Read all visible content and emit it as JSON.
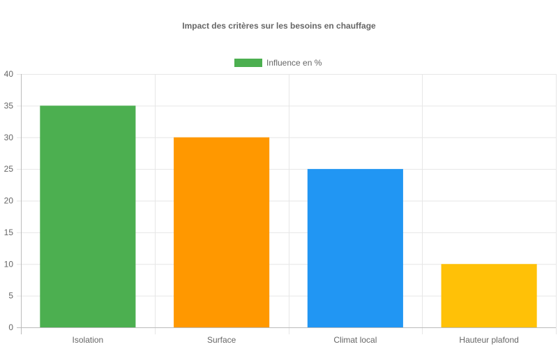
{
  "chart_data": {
    "type": "bar",
    "title": "Impact des critères sur les besoins en chauffage",
    "categories": [
      "Isolation",
      "Surface",
      "Climat local",
      "Hauteur plafond"
    ],
    "series": [
      {
        "name": "Influence en %",
        "values": [
          35,
          30,
          25,
          10
        ],
        "colors": [
          "#4CAF50",
          "#FF9800",
          "#2196F3",
          "#FFC107"
        ]
      }
    ],
    "legend": {
      "position": "top",
      "color": "#4CAF50"
    },
    "ylim": [
      0,
      40
    ],
    "yticks": [
      0,
      5,
      10,
      15,
      20,
      25,
      30,
      35,
      40
    ],
    "grid": true
  }
}
